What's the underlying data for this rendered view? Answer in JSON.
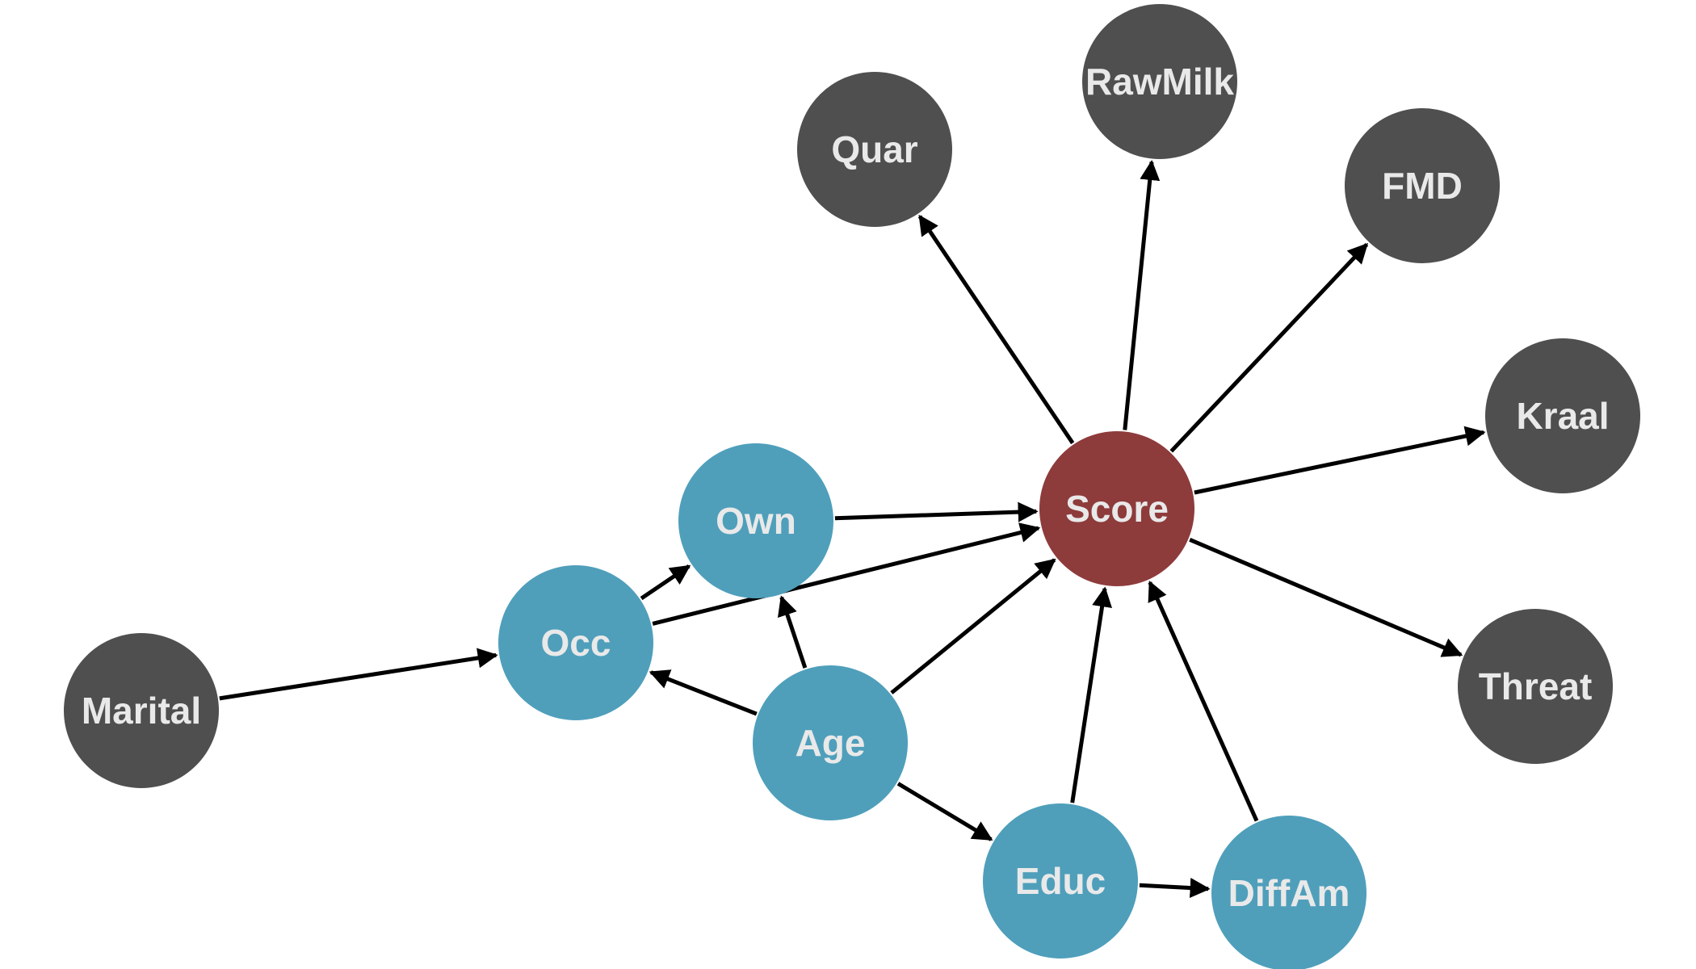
{
  "colors": {
    "outcome": "#8e3b3c",
    "ancestor": "#4f9fbb",
    "other": "#4f4f4f",
    "edge": "#000000",
    "label": "#e9e9e9"
  },
  "nodes": [
    {
      "id": "score",
      "label": "Score",
      "role": "outcome"
    },
    {
      "id": "quar",
      "label": "Quar",
      "role": "other"
    },
    {
      "id": "rawmilk",
      "label": "RawMilk",
      "role": "other"
    },
    {
      "id": "fmd",
      "label": "FMD",
      "role": "other"
    },
    {
      "id": "kraal",
      "label": "Kraal",
      "role": "other"
    },
    {
      "id": "threat",
      "label": "Threat",
      "role": "other"
    },
    {
      "id": "own",
      "label": "Own",
      "role": "ancestor"
    },
    {
      "id": "occ",
      "label": "Occ",
      "role": "ancestor"
    },
    {
      "id": "age",
      "label": "Age",
      "role": "ancestor"
    },
    {
      "id": "educ",
      "label": "Educ",
      "role": "ancestor"
    },
    {
      "id": "diffam",
      "label": "DiffAm",
      "role": "ancestor"
    },
    {
      "id": "marital",
      "label": "Marital",
      "role": "other"
    }
  ],
  "edges": [
    {
      "from": "score",
      "to": "quar"
    },
    {
      "from": "score",
      "to": "rawmilk"
    },
    {
      "from": "score",
      "to": "fmd"
    },
    {
      "from": "score",
      "to": "kraal"
    },
    {
      "from": "score",
      "to": "threat"
    },
    {
      "from": "own",
      "to": "score"
    },
    {
      "from": "occ",
      "to": "score"
    },
    {
      "from": "occ",
      "to": "own"
    },
    {
      "from": "marital",
      "to": "occ"
    },
    {
      "from": "age",
      "to": "occ"
    },
    {
      "from": "age",
      "to": "own"
    },
    {
      "from": "age",
      "to": "score"
    },
    {
      "from": "age",
      "to": "educ"
    },
    {
      "from": "educ",
      "to": "score"
    },
    {
      "from": "educ",
      "to": "diffam"
    },
    {
      "from": "diffam",
      "to": "score"
    }
  ]
}
